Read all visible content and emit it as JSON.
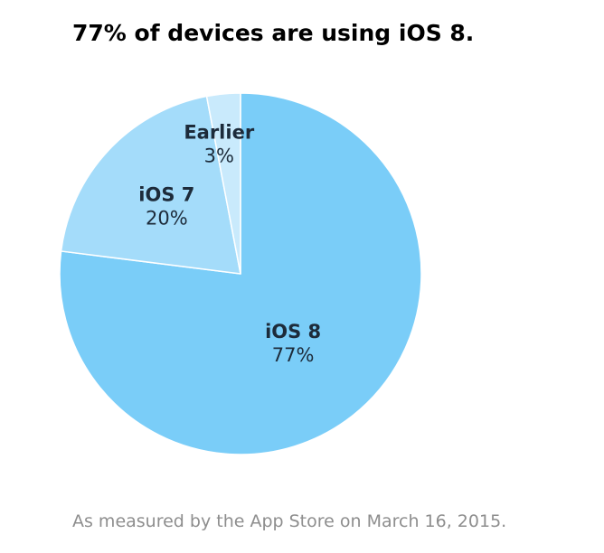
{
  "chart_data": {
    "type": "pie",
    "title": "77% of devices are using iOS 8.",
    "slices": [
      {
        "name": "iOS 8",
        "label": "iOS 8",
        "percent_label": "77%",
        "value": 77,
        "color": "#7acdf8"
      },
      {
        "name": "iOS 7",
        "label": "iOS 7",
        "percent_label": "20%",
        "value": 20,
        "color": "#a4dcfa"
      },
      {
        "name": "Earlier",
        "label": "Earlier",
        "percent_label": "3%",
        "value": 3,
        "color": "#c9eafc"
      }
    ],
    "start_angle": "12 o'clock",
    "direction": "clockwise",
    "legend": "none",
    "labels": "inside slices",
    "slice_separator_color": "#ffffff"
  },
  "footnote": "As measured by the App Store on March 16, 2015."
}
